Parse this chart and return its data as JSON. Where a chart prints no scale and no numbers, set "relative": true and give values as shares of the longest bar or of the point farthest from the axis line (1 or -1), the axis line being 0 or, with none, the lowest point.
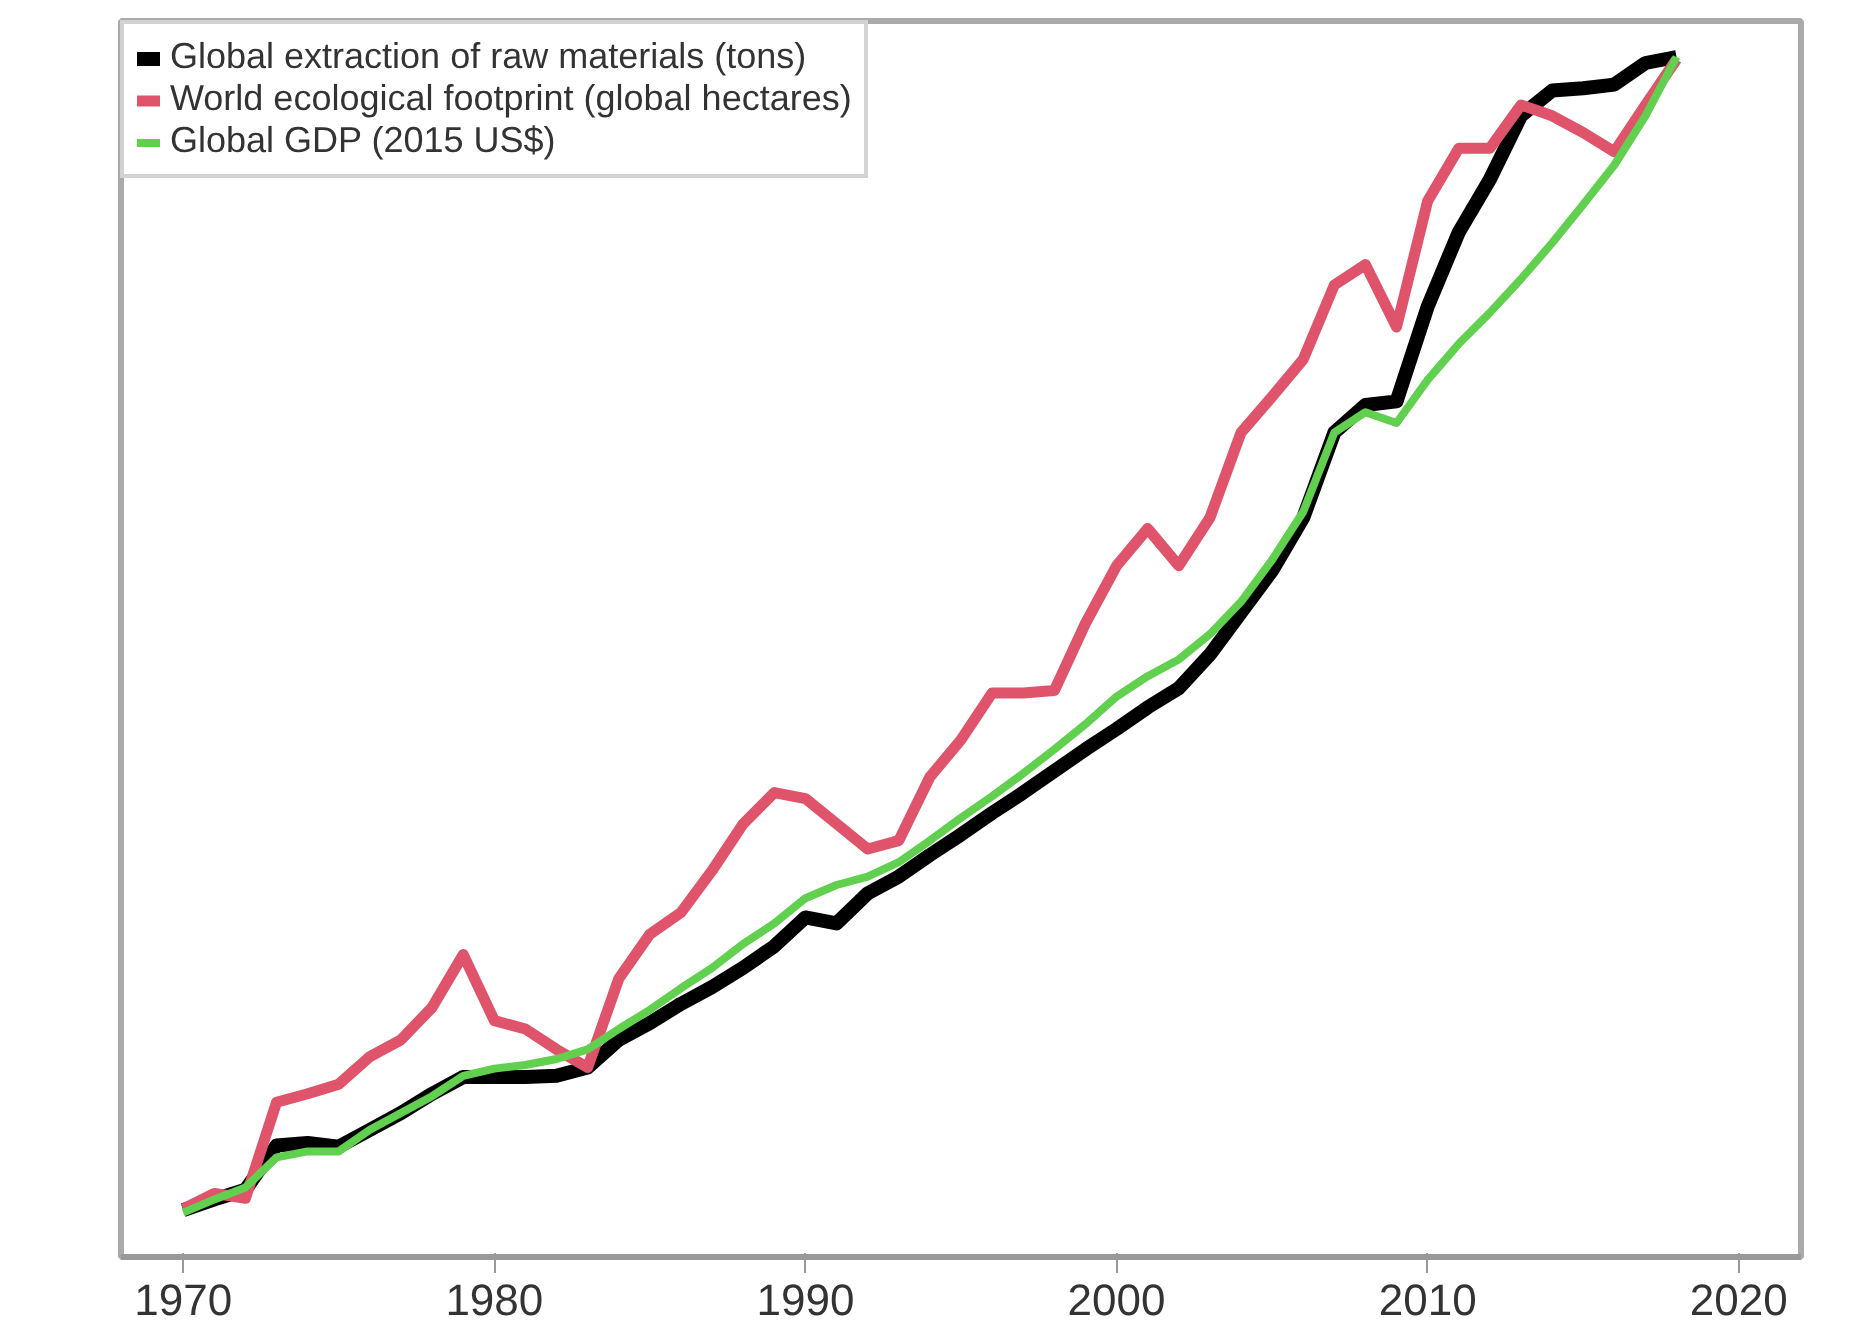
{
  "chart_data": {
    "type": "line",
    "relative": true,
    "legend": "top left",
    "xlim": [
      1968,
      2022
    ],
    "xticks": [
      1970,
      1980,
      1990,
      2000,
      2010,
      2020
    ],
    "x": [
      1970,
      1971,
      1972,
      1973,
      1974,
      1975,
      1976,
      1977,
      1978,
      1979,
      1980,
      1981,
      1982,
      1983,
      1984,
      1985,
      1986,
      1987,
      1988,
      1989,
      1990,
      1991,
      1992,
      1993,
      1994,
      1995,
      1996,
      1997,
      1998,
      1999,
      2000,
      2001,
      2002,
      2003,
      2004,
      2005,
      2006,
      2007,
      2008,
      2009,
      2010,
      2011,
      2012,
      2013,
      2014,
      2015,
      2016,
      2017,
      2018
    ],
    "series": [
      {
        "name": "Global extraction of raw materials (tons)",
        "color": "#000000",
        "values": [
          0.039,
          0.048,
          0.056,
          0.093,
          0.095,
          0.092,
          0.106,
          0.12,
          0.136,
          0.15,
          0.15,
          0.15,
          0.151,
          0.158,
          0.181,
          0.195,
          0.211,
          0.225,
          0.241,
          0.259,
          0.283,
          0.278,
          0.303,
          0.317,
          0.335,
          0.352,
          0.37,
          0.387,
          0.405,
          0.423,
          0.44,
          0.458,
          0.474,
          0.502,
          0.537,
          0.572,
          0.616,
          0.687,
          0.71,
          0.713,
          0.792,
          0.854,
          0.898,
          0.951,
          0.972,
          0.974,
          0.977,
          0.995,
          1.0
        ]
      },
      {
        "name": "World ecological footprint (global hectares)",
        "color": "#df536b",
        "values": [
          0.04,
          0.053,
          0.049,
          0.129,
          0.136,
          0.144,
          0.167,
          0.181,
          0.208,
          0.252,
          0.197,
          0.19,
          0.173,
          0.158,
          0.232,
          0.269,
          0.287,
          0.322,
          0.361,
          0.387,
          0.382,
          0.361,
          0.34,
          0.347,
          0.4,
          0.431,
          0.47,
          0.47,
          0.472,
          0.528,
          0.576,
          0.607,
          0.576,
          0.616,
          0.687,
          0.717,
          0.748,
          0.81,
          0.827,
          0.775,
          0.88,
          0.924,
          0.924,
          0.96,
          0.951,
          0.937,
          0.921,
          0.96,
          0.998
        ]
      },
      {
        "name": "Global GDP (2015 US$)",
        "color": "#61d04f",
        "values": [
          0.037,
          0.048,
          0.058,
          0.083,
          0.088,
          0.088,
          0.106,
          0.12,
          0.134,
          0.151,
          0.157,
          0.16,
          0.165,
          0.173,
          0.19,
          0.206,
          0.224,
          0.241,
          0.261,
          0.278,
          0.299,
          0.31,
          0.317,
          0.329,
          0.347,
          0.366,
          0.384,
          0.403,
          0.423,
          0.444,
          0.467,
          0.484,
          0.498,
          0.519,
          0.546,
          0.581,
          0.621,
          0.687,
          0.704,
          0.695,
          0.731,
          0.761,
          0.787,
          0.815,
          0.845,
          0.877,
          0.91,
          0.951,
          1.0
        ]
      }
    ]
  }
}
